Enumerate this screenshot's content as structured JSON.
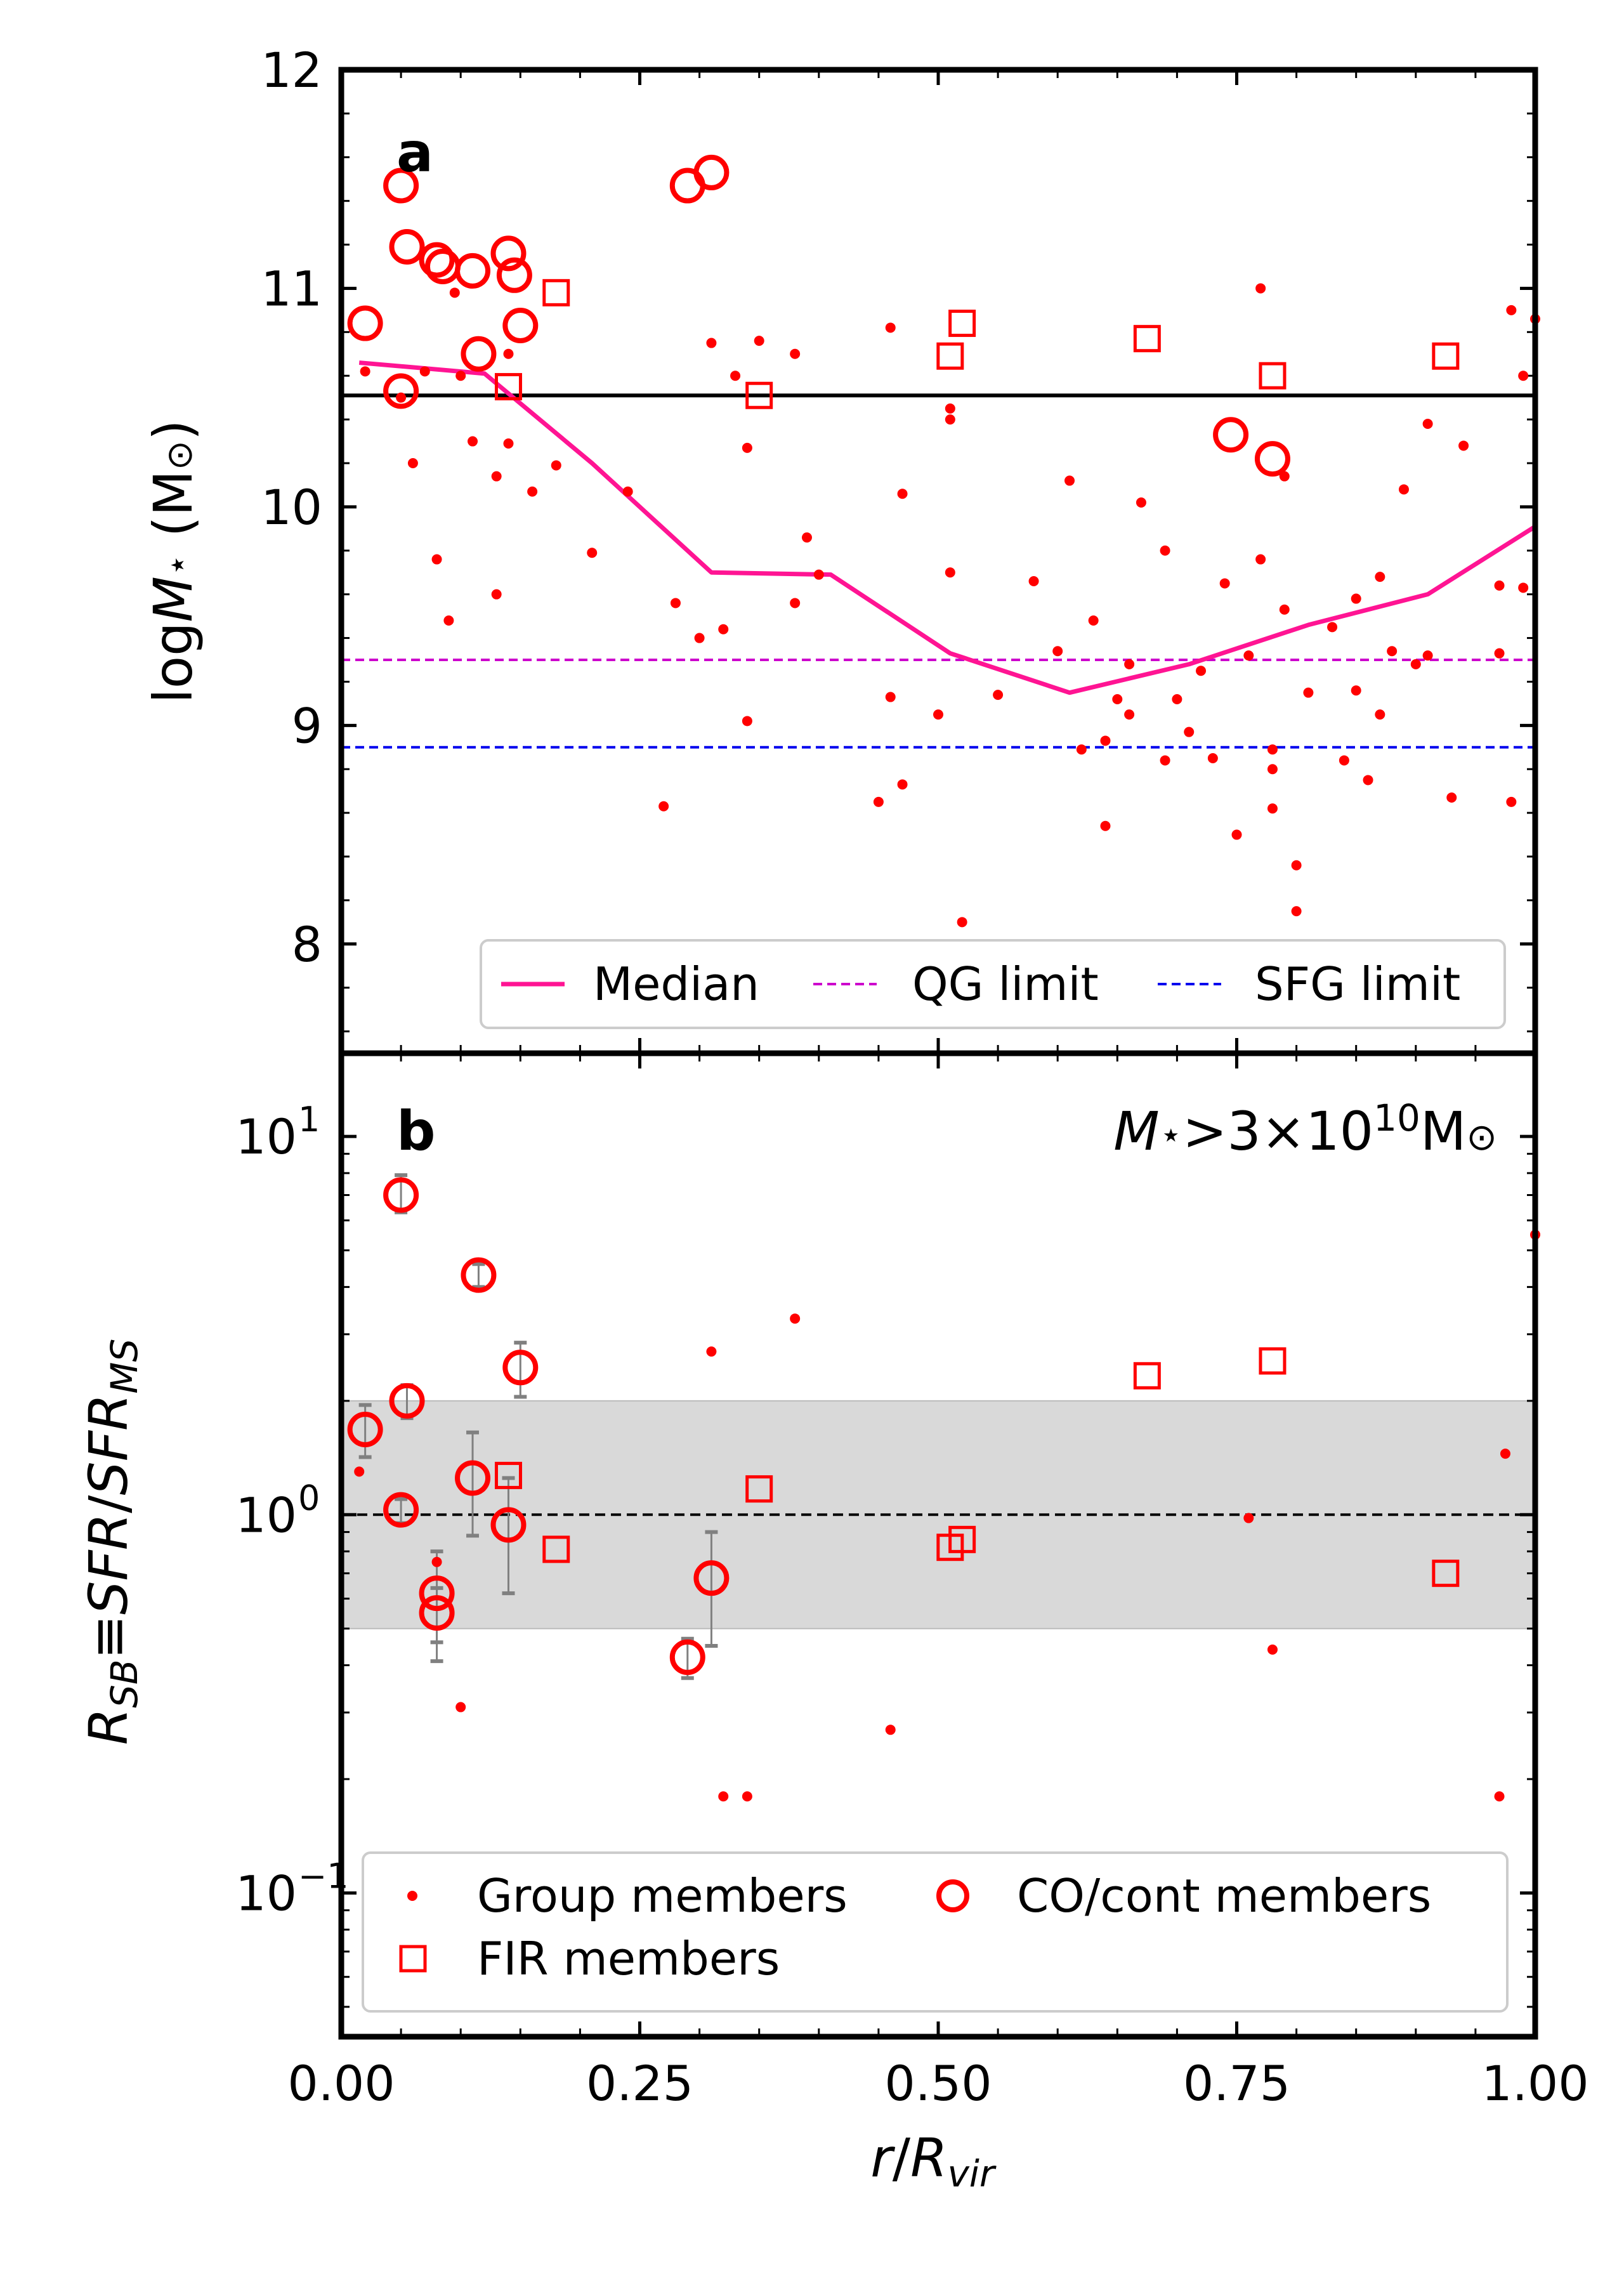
{
  "colors": {
    "member": "#ff0000",
    "median": "#ff1493",
    "qg": "#cc00cc",
    "sfg": "#0000ee",
    "ms_band": "#d9d9d9",
    "errorbar": "#808080"
  },
  "chart_data": [
    {
      "panel": "a",
      "type": "scatter",
      "panel_label": "a",
      "ylabel_html": "log<tspan font-style='italic'>M</tspan><tspan font-size='56' dy='-4'>⋆</tspan><tspan dy='4'> (M</tspan><tspan font-size='56'>⊙</tspan><tspan>)</tspan>",
      "ylabel_text": "logM⋆ (M⊙)",
      "xlim": [
        0,
        1
      ],
      "ylim": [
        7.5,
        12
      ],
      "yticks": [
        "8",
        "9",
        "10",
        "11",
        "12"
      ],
      "ytick_values": [
        8,
        9,
        10,
        11,
        12
      ],
      "hline_solid": 10.51,
      "qg_limit": 9.3,
      "sfg_limit": 8.9,
      "legend": {
        "median": "Median",
        "qg": "QG limit",
        "sfg": "SFG limit"
      },
      "median": {
        "x": [
          0.015,
          0.12,
          0.21,
          0.31,
          0.41,
          0.51,
          0.61,
          0.71,
          0.81,
          0.91,
          1.0
        ],
        "y": [
          10.66,
          10.61,
          10.2,
          9.7,
          9.69,
          9.33,
          9.15,
          9.28,
          9.46,
          9.6,
          9.91
        ]
      },
      "group_members": {
        "x": [
          0.02,
          0.05,
          0.06,
          0.07,
          0.08,
          0.09,
          0.095,
          0.1,
          0.11,
          0.13,
          0.13,
          0.14,
          0.14,
          0.16,
          0.18,
          0.21,
          0.24,
          0.27,
          0.28,
          0.3,
          0.31,
          0.32,
          0.33,
          0.34,
          0.34,
          0.35,
          0.38,
          0.38,
          0.39,
          0.4,
          0.45,
          0.46,
          0.46,
          0.47,
          0.47,
          0.5,
          0.51,
          0.51,
          0.51,
          0.52,
          0.55,
          0.58,
          0.6,
          0.61,
          0.62,
          0.63,
          0.64,
          0.64,
          0.65,
          0.66,
          0.66,
          0.67,
          0.69,
          0.69,
          0.7,
          0.71,
          0.72,
          0.73,
          0.74,
          0.75,
          0.76,
          0.77,
          0.77,
          0.78,
          0.78,
          0.78,
          0.79,
          0.79,
          0.8,
          0.8,
          0.81,
          0.83,
          0.84,
          0.85,
          0.85,
          0.86,
          0.87,
          0.87,
          0.88,
          0.89,
          0.9,
          0.91,
          0.91,
          0.93,
          0.94,
          0.97,
          0.98,
          0.98,
          0.99,
          1.0,
          0.97,
          0.99
        ],
        "y": [
          10.62,
          10.5,
          10.2,
          10.62,
          9.76,
          9.48,
          10.98,
          10.6,
          10.3,
          10.14,
          9.6,
          10.29,
          10.7,
          10.07,
          10.19,
          9.79,
          10.07,
          8.63,
          9.56,
          9.4,
          10.75,
          9.44,
          10.6,
          9.02,
          10.27,
          10.76,
          9.56,
          10.7,
          9.86,
          9.69,
          8.65,
          9.13,
          10.82,
          8.73,
          10.06,
          9.05,
          10.45,
          10.4,
          9.7,
          8.1,
          9.14,
          9.66,
          9.34,
          10.12,
          8.89,
          9.48,
          8.93,
          8.54,
          9.12,
          9.05,
          9.28,
          10.02,
          8.84,
          9.8,
          9.12,
          8.97,
          9.25,
          8.85,
          9.65,
          8.5,
          9.32,
          9.76,
          11.0,
          8.62,
          8.89,
          8.8,
          10.14,
          9.53,
          8.36,
          8.15,
          9.15,
          9.45,
          8.84,
          9.58,
          9.16,
          8.75,
          9.68,
          9.05,
          9.34,
          10.08,
          9.28,
          9.32,
          10.38,
          8.67,
          10.28,
          9.33,
          8.65,
          10.9,
          9.63,
          10.86,
          9.64,
          10.6
        ],
        "_note": "Small filled red dots"
      },
      "co_cont_members": {
        "x": [
          0.02,
          0.05,
          0.05,
          0.055,
          0.08,
          0.085,
          0.11,
          0.115,
          0.14,
          0.145,
          0.15,
          0.29,
          0.31,
          0.745,
          0.78
        ],
        "y": [
          10.84,
          11.47,
          10.53,
          11.19,
          11.13,
          11.1,
          11.08,
          10.7,
          11.16,
          11.06,
          10.83,
          11.47,
          11.53,
          10.33,
          10.22
        ]
      },
      "fir_members": {
        "x": [
          0.14,
          0.18,
          0.35,
          0.51,
          0.52,
          0.675,
          0.78,
          0.925
        ],
        "y": [
          10.55,
          10.98,
          10.51,
          10.69,
          10.84,
          10.77,
          10.6,
          10.69
        ]
      }
    },
    {
      "panel": "b",
      "type": "scatter",
      "panel_label": "b",
      "annotation_html": "<tspan font-style='italic'>M</tspan><tspan font-size='58' dy='-4'>⋆</tspan><tspan dy='4'>&gt;3×10</tspan><tspan font-size='58' dy='-30'>10</tspan><tspan dy='30'>M</tspan><tspan font-size='58'>⊙</tspan>",
      "annotation_text": "M⋆>3×10^10 M⊙",
      "ylabel_html": "<tspan font-style='italic'>R</tspan><tspan font-style='italic' font-size='58' dy='16'>SB</tspan><tspan dy='-16'>≡</tspan><tspan font-style='italic'>SFR</tspan><tspan>/</tspan><tspan font-style='italic'>SFR</tspan><tspan font-style='italic' font-size='58' dy='16'>MS</tspan>",
      "ylabel_text": "R_SB ≡ SFR/SFR_MS",
      "yscale": "log",
      "xlim": [
        0,
        1
      ],
      "ylim_log10": [
        -1.38,
        1.22
      ],
      "ytick_log10": [
        -1,
        0,
        1
      ],
      "yticks": [
        "10",
        "10",
        "10"
      ],
      "ytick_exponents": [
        "−1",
        "0",
        "1"
      ],
      "ms_band": [
        0.5,
        2.0
      ],
      "unity_line": 1.0,
      "xlabel_html": "<tspan font-style='italic'>r</tspan><tspan>/</tspan><tspan font-style='italic'>R</tspan><tspan font-style='italic' font-size='58' dy='16'>vir</tspan>",
      "xlabel_text": "r/R_vir",
      "xticks": [
        "0.00",
        "0.25",
        "0.50",
        "0.75",
        "1.00"
      ],
      "xtick_values": [
        0,
        0.25,
        0.5,
        0.75,
        1.0
      ],
      "legend": {
        "group": "Group members",
        "co": "CO/cont members",
        "fir": "FIR members"
      },
      "group_members": {
        "x": [
          0.015,
          0.08,
          0.1,
          0.31,
          0.32,
          0.34,
          0.38,
          0.46,
          0.76,
          0.78,
          0.97,
          0.975,
          1.0
        ],
        "y": [
          1.3,
          0.75,
          0.31,
          2.7,
          0.18,
          0.18,
          3.3,
          0.27,
          0.98,
          0.44,
          0.18,
          1.45,
          5.5
        ]
      },
      "co_cont_members": {
        "x": [
          0.02,
          0.05,
          0.05,
          0.055,
          0.08,
          0.08,
          0.11,
          0.115,
          0.14,
          0.15,
          0.29,
          0.31
        ],
        "y": [
          1.68,
          7.0,
          1.03,
          2.0,
          0.62,
          0.55,
          1.25,
          4.3,
          0.94,
          2.45,
          0.42,
          0.68
        ],
        "err_lo": [
          1.42,
          6.3,
          0.95,
          1.8,
          0.41,
          0.46,
          0.88,
          4.0,
          0.62,
          2.05,
          0.37,
          0.45
        ],
        "err_hi": [
          1.95,
          7.9,
          1.1,
          2.2,
          0.8,
          0.64,
          1.65,
          4.6,
          1.25,
          2.85,
          0.47,
          0.9
        ]
      },
      "fir_members": {
        "x": [
          0.14,
          0.18,
          0.35,
          0.51,
          0.52,
          0.675,
          0.78,
          0.925
        ],
        "y": [
          1.27,
          0.81,
          1.17,
          0.82,
          0.86,
          2.33,
          2.55,
          0.7
        ]
      }
    }
  ]
}
